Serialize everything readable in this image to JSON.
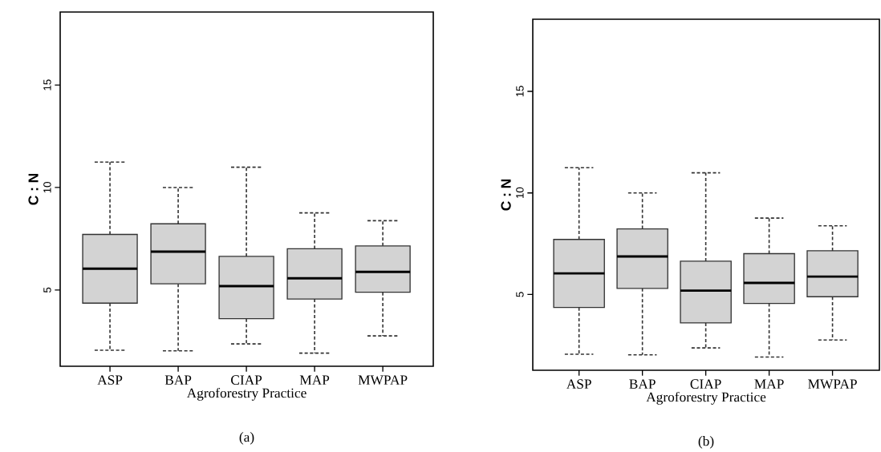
{
  "chart_data": [
    {
      "type": "box",
      "xlabel": "Agroforestry Practice",
      "ylabel": "C : N",
      "annotations": [
        "(a)"
      ],
      "color": "#d3d3d3",
      "categories": [
        "ASP",
        "BAP",
        "CIAP",
        "MAP",
        "MWPAP"
      ],
      "boxes": [
        {
          "low": 2.06,
          "q1": 4.36,
          "median": 6.04,
          "q3": 7.71,
          "high": 11.24
        },
        {
          "low": 2.03,
          "q1": 5.3,
          "median": 6.87,
          "q3": 8.23,
          "high": 10.0
        },
        {
          "low": 2.37,
          "q1": 3.6,
          "median": 5.19,
          "q3": 6.64,
          "high": 10.99
        },
        {
          "low": 1.92,
          "q1": 4.56,
          "median": 5.57,
          "q3": 7.01,
          "high": 8.76
        },
        {
          "low": 2.76,
          "q1": 4.89,
          "median": 5.88,
          "q3": 7.15,
          "high": 8.38
        }
      ],
      "ylim": [
        1.28,
        18.56
      ],
      "yticks": [
        5,
        10,
        15
      ]
    },
    {
      "type": "box",
      "xlabel": "Agroforestry Practice",
      "ylabel": "C : N",
      "annotations": [
        "(b)"
      ],
      "color": "#d3d3d3",
      "categories": [
        "ASP",
        "BAP",
        "CIAP",
        "MAP",
        "MWPAP"
      ],
      "boxes": [
        {
          "low": 2.06,
          "q1": 4.36,
          "median": 6.04,
          "q3": 7.71,
          "high": 11.24
        },
        {
          "low": 2.03,
          "q1": 5.3,
          "median": 6.87,
          "q3": 8.23,
          "high": 10.0
        },
        {
          "low": 2.37,
          "q1": 3.6,
          "median": 5.19,
          "q3": 6.64,
          "high": 10.99
        },
        {
          "low": 1.92,
          "q1": 4.56,
          "median": 5.57,
          "q3": 7.01,
          "high": 8.76
        },
        {
          "low": 2.76,
          "q1": 4.89,
          "median": 5.88,
          "q3": 7.15,
          "high": 8.38
        }
      ],
      "ylim": [
        1.27,
        18.55
      ],
      "yticks": [
        5,
        10,
        15
      ]
    }
  ]
}
